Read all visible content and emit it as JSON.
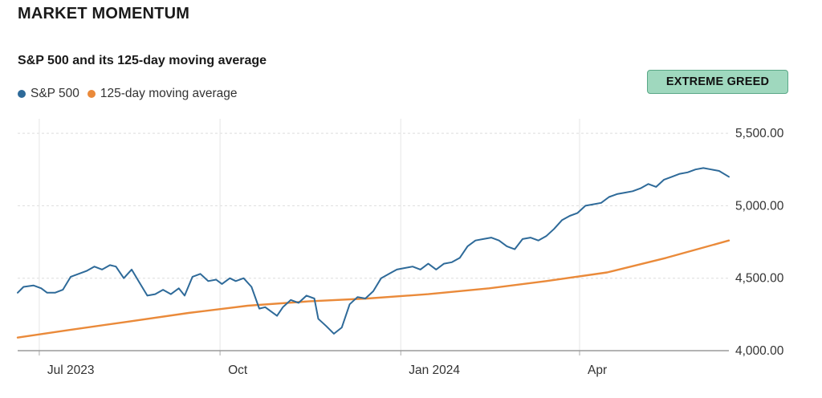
{
  "header": {
    "title": "MARKET MOMENTUM",
    "subtitle": "S&P 500 and its 125-day moving average"
  },
  "badge": {
    "label": "EXTREME GREED",
    "bg_color": "#9fd8be"
  },
  "legend": [
    {
      "name": "S&P 500",
      "color": "#2e6a99"
    },
    {
      "name": "125-day moving average",
      "color": "#ea8a3a"
    }
  ],
  "chart_data": {
    "type": "line",
    "title": "S&P 500 and its 125-day moving average",
    "xlabel": "",
    "ylabel": "",
    "x_range": [
      "2023-06-20",
      "2024-06-16"
    ],
    "ylim": [
      4000,
      5600
    ],
    "y_ticks": [
      4000,
      4500,
      5000,
      5500
    ],
    "y_tick_labels": [
      "4,000.00",
      "4,500.00",
      "5,000.00",
      "5,500.00"
    ],
    "x_ticks": [
      {
        "date": "2023-07-01",
        "label": "Jul 2023"
      },
      {
        "date": "2023-10-01",
        "label": "Oct"
      },
      {
        "date": "2024-01-01",
        "label": "Jan 2024"
      },
      {
        "date": "2024-04-01",
        "label": "Apr"
      }
    ],
    "grid": true,
    "legend_position": "top-left",
    "series": [
      {
        "name": "S&P 500",
        "color": "#2e6a99",
        "points": [
          [
            "2023-06-20",
            4400
          ],
          [
            "2023-06-23",
            4440
          ],
          [
            "2023-06-28",
            4450
          ],
          [
            "2023-07-02",
            4430
          ],
          [
            "2023-07-05",
            4400
          ],
          [
            "2023-07-09",
            4400
          ],
          [
            "2023-07-13",
            4420
          ],
          [
            "2023-07-17",
            4510
          ],
          [
            "2023-07-21",
            4530
          ],
          [
            "2023-07-25",
            4550
          ],
          [
            "2023-07-29",
            4580
          ],
          [
            "2023-08-02",
            4560
          ],
          [
            "2023-08-06",
            4590
          ],
          [
            "2023-08-09",
            4580
          ],
          [
            "2023-08-13",
            4500
          ],
          [
            "2023-08-17",
            4560
          ],
          [
            "2023-08-21",
            4470
          ],
          [
            "2023-08-25",
            4380
          ],
          [
            "2023-08-29",
            4390
          ],
          [
            "2023-09-02",
            4420
          ],
          [
            "2023-09-06",
            4390
          ],
          [
            "2023-09-10",
            4430
          ],
          [
            "2023-09-13",
            4380
          ],
          [
            "2023-09-17",
            4510
          ],
          [
            "2023-09-21",
            4530
          ],
          [
            "2023-09-25",
            4480
          ],
          [
            "2023-09-29",
            4490
          ],
          [
            "2023-10-02",
            4460
          ],
          [
            "2023-10-06",
            4500
          ],
          [
            "2023-10-09",
            4480
          ],
          [
            "2023-10-13",
            4500
          ],
          [
            "2023-10-17",
            4440
          ],
          [
            "2023-10-21",
            4290
          ],
          [
            "2023-10-24",
            4300
          ],
          [
            "2023-10-27",
            4270
          ],
          [
            "2023-10-30",
            4240
          ],
          [
            "2023-11-02",
            4300
          ],
          [
            "2023-11-06",
            4350
          ],
          [
            "2023-11-10",
            4330
          ],
          [
            "2023-11-14",
            4380
          ],
          [
            "2023-11-18",
            4360
          ],
          [
            "2023-11-20",
            4220
          ],
          [
            "2023-11-24",
            4170
          ],
          [
            "2023-11-28",
            4117
          ],
          [
            "2023-12-02",
            4160
          ],
          [
            "2023-12-06",
            4320
          ],
          [
            "2023-12-10",
            4370
          ],
          [
            "2023-12-14",
            4360
          ],
          [
            "2023-12-18",
            4410
          ],
          [
            "2023-12-22",
            4500
          ],
          [
            "2023-12-26",
            4530
          ],
          [
            "2023-12-30",
            4560
          ],
          [
            "2024-01-03",
            4570
          ],
          [
            "2024-01-07",
            4580
          ],
          [
            "2024-01-11",
            4560
          ],
          [
            "2024-01-15",
            4600
          ],
          [
            "2024-01-19",
            4560
          ],
          [
            "2024-01-23",
            4600
          ],
          [
            "2024-01-27",
            4610
          ],
          [
            "2024-01-31",
            4640
          ],
          [
            "2024-02-04",
            4720
          ],
          [
            "2024-02-08",
            4760
          ],
          [
            "2024-02-12",
            4770
          ],
          [
            "2024-02-16",
            4780
          ],
          [
            "2024-02-20",
            4760
          ],
          [
            "2024-02-24",
            4720
          ],
          [
            "2024-02-28",
            4700
          ],
          [
            "2024-03-03",
            4770
          ],
          [
            "2024-03-07",
            4780
          ],
          [
            "2024-03-11",
            4760
          ],
          [
            "2024-03-15",
            4790
          ],
          [
            "2024-03-19",
            4840
          ],
          [
            "2024-03-23",
            4900
          ],
          [
            "2024-03-27",
            4930
          ],
          [
            "2024-03-31",
            4950
          ],
          [
            "2024-04-04",
            5000
          ],
          [
            "2024-04-08",
            5010
          ],
          [
            "2024-04-12",
            5020
          ],
          [
            "2024-04-16",
            5060
          ],
          [
            "2024-04-20",
            5080
          ],
          [
            "2024-04-24",
            5090
          ],
          [
            "2024-04-28",
            5100
          ],
          [
            "2024-05-02",
            5120
          ],
          [
            "2024-05-06",
            5150
          ],
          [
            "2024-05-10",
            5130
          ],
          [
            "2024-05-14",
            5180
          ],
          [
            "2024-05-18",
            5200
          ],
          [
            "2024-05-22",
            5220
          ],
          [
            "2024-05-26",
            5230
          ],
          [
            "2024-05-30",
            5250
          ],
          [
            "2024-06-03",
            5260
          ],
          [
            "2024-06-07",
            5250
          ],
          [
            "2024-06-11",
            5240
          ],
          [
            "2024-06-16",
            5200
          ]
        ]
      },
      {
        "name": "125-day moving average",
        "color": "#ea8a3a",
        "points": [
          [
            "2023-06-20",
            4090
          ],
          [
            "2023-07-15",
            4140
          ],
          [
            "2023-08-15",
            4200
          ],
          [
            "2023-09-15",
            4260
          ],
          [
            "2023-10-15",
            4310
          ],
          [
            "2023-11-15",
            4340
          ],
          [
            "2023-12-15",
            4360
          ],
          [
            "2024-01-15",
            4390
          ],
          [
            "2024-02-15",
            4430
          ],
          [
            "2024-03-15",
            4480
          ],
          [
            "2024-04-15",
            4540
          ],
          [
            "2024-05-15",
            4640
          ],
          [
            "2024-06-16",
            4760
          ]
        ]
      }
    ]
  }
}
